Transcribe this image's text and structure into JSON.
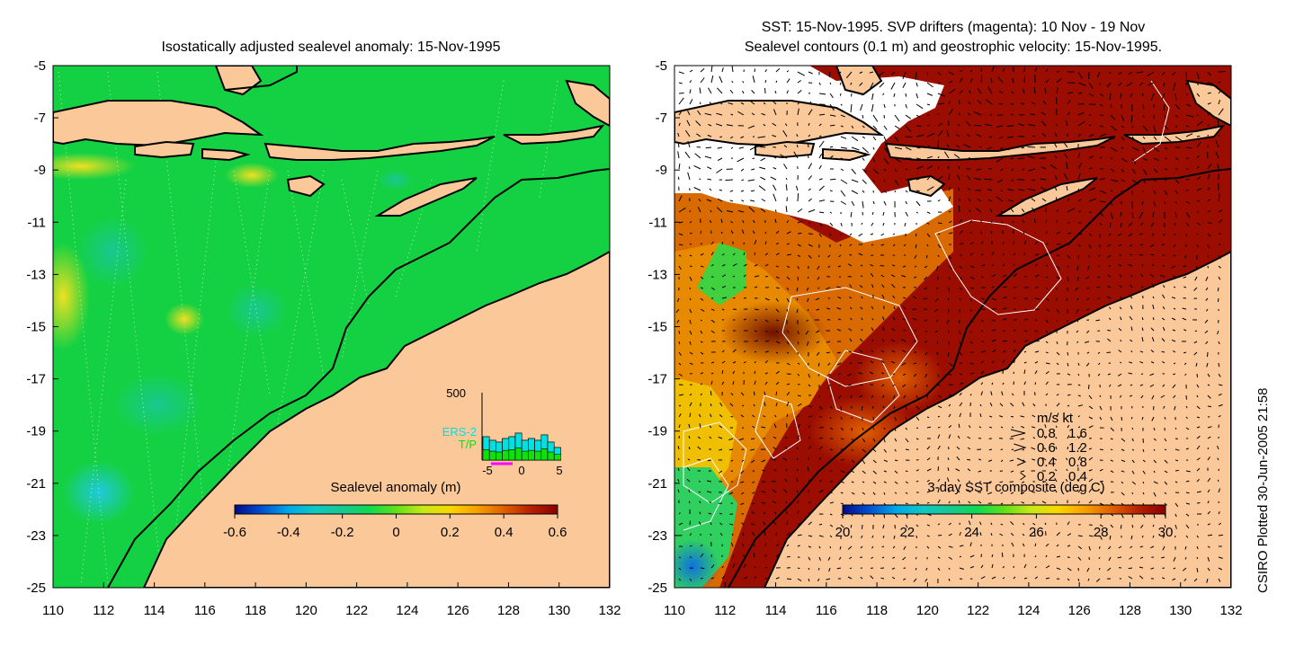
{
  "left_panel": {
    "title": "Isostatically adjusted sealevel anomaly: 15-Nov-1995",
    "colorbar": {
      "label": "Sealevel anomaly (m)",
      "ticks": [
        "-0.6",
        "-0.4",
        "-0.2",
        "0",
        "0.2",
        "0.4",
        "0.6"
      ],
      "min": -0.6,
      "max": 0.6,
      "colors": [
        "#000a8c",
        "#0050d0",
        "#00a8e8",
        "#10c8c0",
        "#18c890",
        "#10d850",
        "#60e018",
        "#c8e818",
        "#f8d800",
        "#f8a000",
        "#e06000",
        "#b82000",
        "#8a0000"
      ]
    },
    "inset": {
      "y_max_label": "500",
      "ticks": [
        "-5",
        "0",
        "5"
      ],
      "legend": [
        {
          "name": "ERS-2",
          "color": "#00e0e0"
        },
        {
          "name": "T/P",
          "color": "#10e010"
        }
      ]
    },
    "xticks": [
      "110",
      "112",
      "114",
      "116",
      "118",
      "120",
      "122",
      "124",
      "126",
      "128",
      "130",
      "132"
    ],
    "yticks": [
      "-5",
      "-7",
      "-9",
      "-11",
      "-13",
      "-15",
      "-17",
      "-19",
      "-21",
      "-23",
      "-25"
    ]
  },
  "right_panel": {
    "title_line1": "SST: 15-Nov-1995. SVP drifters (magenta): 10 Nov - 19 Nov",
    "title_line2": "Sealevel contours (0.1 m) and geostrophic velocity: 15-Nov-1995.",
    "colorbar": {
      "label": "3-day SST composite (deg C)",
      "ticks": [
        "20",
        "22",
        "24",
        "26",
        "28",
        "30"
      ],
      "min": 20,
      "max": 30,
      "colors": [
        "#000a8c",
        "#0050d0",
        "#00a8e8",
        "#10c8c0",
        "#18c890",
        "#10d850",
        "#60e018",
        "#c8e818",
        "#f8d800",
        "#f8a000",
        "#e06000",
        "#b82000",
        "#8a0000"
      ]
    },
    "velocity_key": {
      "header": "m/s  kt",
      "rows": [
        {
          "ms": "0.8",
          "kt": "1.6"
        },
        {
          "ms": "0.6",
          "kt": "1.2"
        },
        {
          "ms": "0.4",
          "kt": "0.8"
        },
        {
          "ms": "0.2",
          "kt": "0.4"
        }
      ]
    },
    "xticks": [
      "110",
      "112",
      "114",
      "116",
      "118",
      "120",
      "122",
      "124",
      "126",
      "128",
      "130",
      "132"
    ],
    "yticks": [
      "-5",
      "-7",
      "-9",
      "-11",
      "-13",
      "-15",
      "-17",
      "-19",
      "-21",
      "-23",
      "-25"
    ]
  },
  "credit": "CSIRO Plotted 30-Jun-2005 21:58",
  "colors": {
    "land": "#fbc89a",
    "ocean_green": "#22d622",
    "sst_hot": "#8f0800",
    "sst_warm": "#e07000"
  }
}
